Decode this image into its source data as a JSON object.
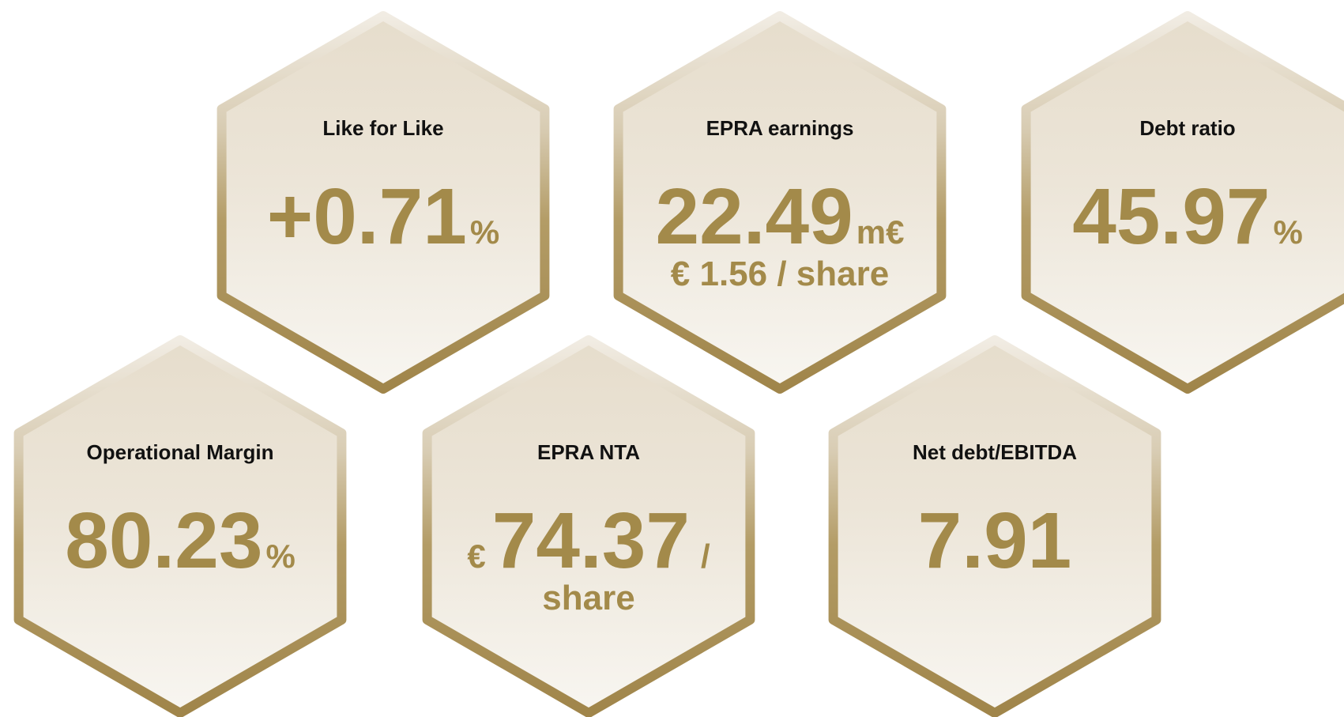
{
  "tiles": [
    {
      "label": "Like for Like",
      "value": "+0.71",
      "unit": "%"
    },
    {
      "label": "EPRA earnings",
      "value": "22.49",
      "unit": "m€",
      "sub": "€ 1.56 / share"
    },
    {
      "label": "Debt ratio",
      "value": "45.97",
      "unit": "%"
    },
    {
      "label": "Operational Margin",
      "value": "80.23",
      "unit": "%"
    },
    {
      "label": "EPRA NTA",
      "prefix": "€",
      "value": "74.37",
      "unit": "/",
      "sub": "share"
    },
    {
      "label": "Net debt/EBITDA",
      "value": "7.91"
    }
  ]
}
